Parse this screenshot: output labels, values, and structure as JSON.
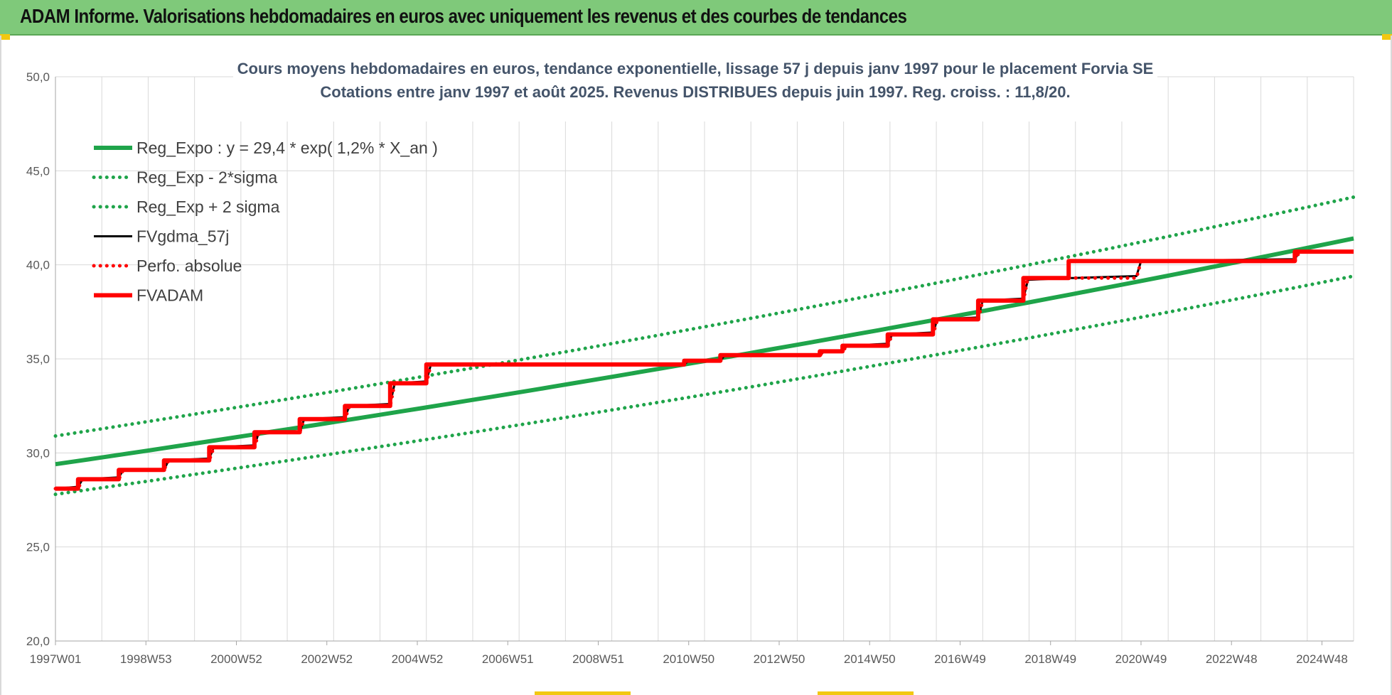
{
  "header": {
    "title": "ADAM Informe. Valorisations hebdomadaires en euros avec uniquement les revenus et des courbes de tendances"
  },
  "chart_data": {
    "type": "line",
    "title": "Cours moyens hebdomadaires en euros, tendance exponentielle, lissage 57 j depuis janv 1997 pour le placement Forvia SE",
    "subtitle": "Cotations entre janv 1997 et août 2025.  Revenus DISTRIBUES depuis juin 1997.  Reg. croiss. : 11,8/20.",
    "xlabel": "",
    "ylabel": "",
    "ylim": [
      20,
      50
    ],
    "xlim": [
      1997.0,
      2025.7
    ],
    "y_ticks": [
      "20,0",
      "25,0",
      "30,0",
      "35,0",
      "40,0",
      "45,0",
      "50,0"
    ],
    "x_ticks": [
      "1997W01",
      "1998W53",
      "2000W52",
      "2002W52",
      "2004W52",
      "2006W51",
      "2008W51",
      "2010W50",
      "2012W50",
      "2014W50",
      "2016W49",
      "2018W49",
      "2020W49",
      "2022W48",
      "2024W48"
    ],
    "grid": true,
    "legend_position": "top-left",
    "series": [
      {
        "name": "Reg_Expo : y = 29,4 * exp( 1,2% *  X_an )",
        "color": "#1fa44a",
        "style": "solid-thick",
        "x": [
          1997.0,
          2025.7
        ],
        "values": [
          29.4,
          41.4
        ]
      },
      {
        "name": "Reg_Exp - 2*sigma",
        "color": "#1fa44a",
        "style": "dotted",
        "x": [
          1997.0,
          2025.7
        ],
        "values": [
          27.8,
          39.4
        ]
      },
      {
        "name": "Reg_Exp + 2 sigma",
        "color": "#1fa44a",
        "style": "dotted",
        "x": [
          1997.0,
          2025.7
        ],
        "values": [
          30.9,
          43.6
        ]
      },
      {
        "name": "FVgdma_57j",
        "color": "#000000",
        "style": "solid",
        "x": [
          1997.0,
          1997.5,
          1997.6,
          1998.4,
          1998.5,
          1999.4,
          1999.5,
          2000.4,
          2000.5,
          2001.4,
          2001.5,
          2002.4,
          2002.5,
          2003.4,
          2003.5,
          2004.4,
          2004.5,
          2005.2,
          2005.3,
          2010.9,
          2011.0,
          2011.7,
          2011.8,
          2013.9,
          2014.0,
          2014.4,
          2014.5,
          2015.4,
          2015.5,
          2016.4,
          2016.5,
          2017.4,
          2017.5,
          2018.4,
          2018.5,
          2019.4,
          2019.5,
          2020.9,
          2021.0,
          2024.4,
          2024.5,
          2025.7
        ],
        "values": [
          28.1,
          28.2,
          28.6,
          28.7,
          29.1,
          29.1,
          29.6,
          29.7,
          30.3,
          30.4,
          31.1,
          31.1,
          31.8,
          31.9,
          32.5,
          32.6,
          33.7,
          33.8,
          34.7,
          34.7,
          34.9,
          34.9,
          35.2,
          35.2,
          35.4,
          35.4,
          35.7,
          35.8,
          36.3,
          36.4,
          37.1,
          37.2,
          38.1,
          38.2,
          39.2,
          39.3,
          39.3,
          39.4,
          40.2,
          40.3,
          40.7,
          40.7
        ]
      },
      {
        "name": "Perfo. absolue",
        "color": "#ff0000",
        "style": "dotted",
        "x": [
          1997.0,
          1997.5,
          1997.6,
          1998.4,
          1998.5,
          1999.4,
          1999.5,
          2000.4,
          2000.5,
          2001.4,
          2001.5,
          2002.4,
          2002.5,
          2003.4,
          2003.5,
          2004.4,
          2004.5,
          2005.2,
          2005.3,
          2010.9,
          2011.0,
          2011.7,
          2011.8,
          2013.9,
          2014.0,
          2014.4,
          2014.5,
          2015.4,
          2015.5,
          2016.4,
          2016.5,
          2017.4,
          2017.5,
          2018.4,
          2018.5,
          2019.4,
          2019.5,
          2020.9,
          2021.0,
          2024.4,
          2024.5,
          2025.7
        ],
        "values": [
          28.1,
          28.1,
          28.6,
          28.6,
          29.1,
          29.1,
          29.6,
          29.6,
          30.3,
          30.3,
          31.1,
          31.1,
          31.8,
          31.8,
          32.5,
          32.5,
          33.7,
          33.7,
          34.7,
          34.7,
          34.9,
          34.9,
          35.2,
          35.2,
          35.4,
          35.4,
          35.7,
          35.7,
          36.3,
          36.3,
          37.1,
          37.1,
          38.1,
          38.1,
          39.3,
          39.3,
          39.3,
          39.3,
          40.2,
          40.2,
          40.7,
          40.7
        ]
      },
      {
        "name": "FVADAM",
        "color": "#ff0000",
        "style": "solid-thick",
        "x": [
          1997.0,
          1997.5,
          1997.5,
          1998.4,
          1998.4,
          1999.4,
          1999.4,
          2000.4,
          2000.4,
          2001.4,
          2001.4,
          2002.4,
          2002.4,
          2003.4,
          2003.4,
          2004.4,
          2004.4,
          2005.2,
          2005.2,
          2010.9,
          2010.9,
          2011.7,
          2011.7,
          2013.9,
          2013.9,
          2014.4,
          2014.4,
          2015.4,
          2015.4,
          2016.4,
          2016.4,
          2017.4,
          2017.4,
          2018.4,
          2018.4,
          2019.4,
          2019.4,
          2020.9,
          2020.9,
          2024.4,
          2024.4,
          2025.7
        ],
        "values": [
          28.1,
          28.1,
          28.6,
          28.6,
          29.1,
          29.1,
          29.6,
          29.6,
          30.3,
          30.3,
          31.1,
          31.1,
          31.8,
          31.8,
          32.5,
          32.5,
          33.7,
          33.7,
          34.7,
          34.7,
          34.9,
          34.9,
          35.2,
          35.2,
          35.4,
          35.4,
          35.7,
          35.7,
          36.3,
          36.3,
          37.1,
          37.1,
          38.1,
          38.1,
          39.3,
          39.3,
          40.2,
          40.2,
          40.2,
          40.2,
          40.7,
          40.7
        ]
      }
    ]
  }
}
